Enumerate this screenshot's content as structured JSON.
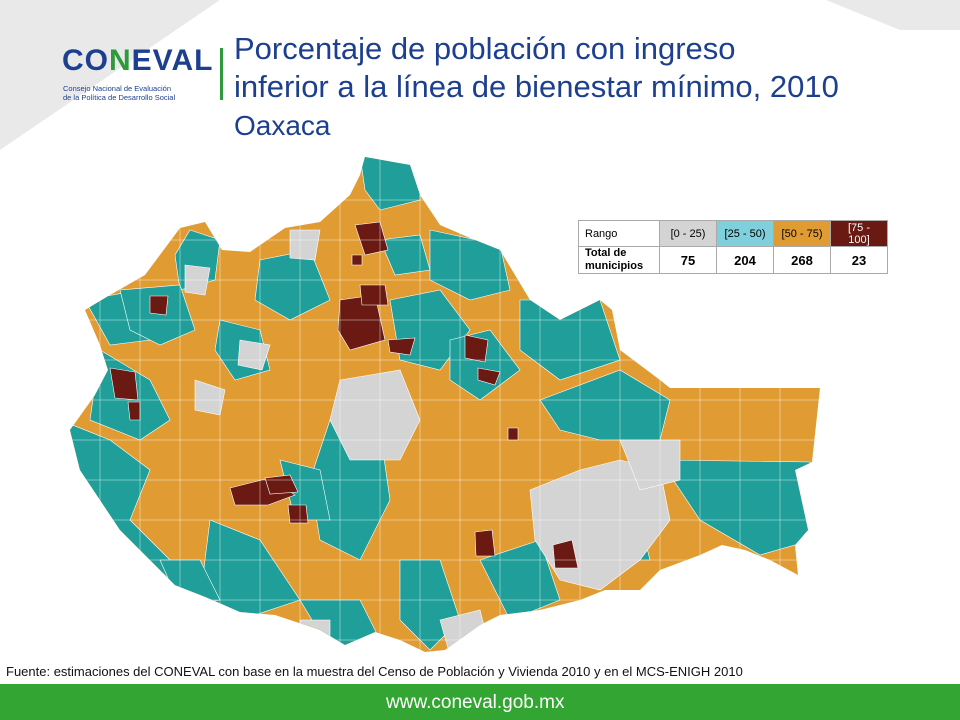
{
  "logo": {
    "word_a": "CO",
    "word_b": "N",
    "word_c": "EVAL",
    "line1": "Consejo Nacional de Evaluación",
    "line2": "de la Política de Desarrollo Social"
  },
  "header": {
    "title_line1": "Porcentaje de población con ingreso",
    "title_line2": "inferior a la línea de bienestar mínimo, 2010",
    "subtitle": "Oaxaca"
  },
  "legend": {
    "range_label": "Rango",
    "total_label_1": "Total de",
    "total_label_2": "municipios",
    "ranges": [
      "[0 - 25)",
      "[25 - 50)",
      "[50 - 75)",
      "[75 - 100]"
    ],
    "counts": [
      "75",
      "204",
      "268",
      "23"
    ],
    "colors": [
      "#d4d4d4",
      "#1f9e9a",
      "#e09c33",
      "#6b1a13"
    ]
  },
  "source": "Fuente: estimaciones del CONEVAL con base en la muestra del Censo de Población y Vivienda 2010 y en el MCS-ENIGH 2010",
  "footer": {
    "url": "www.coneval.gob.mx"
  }
}
